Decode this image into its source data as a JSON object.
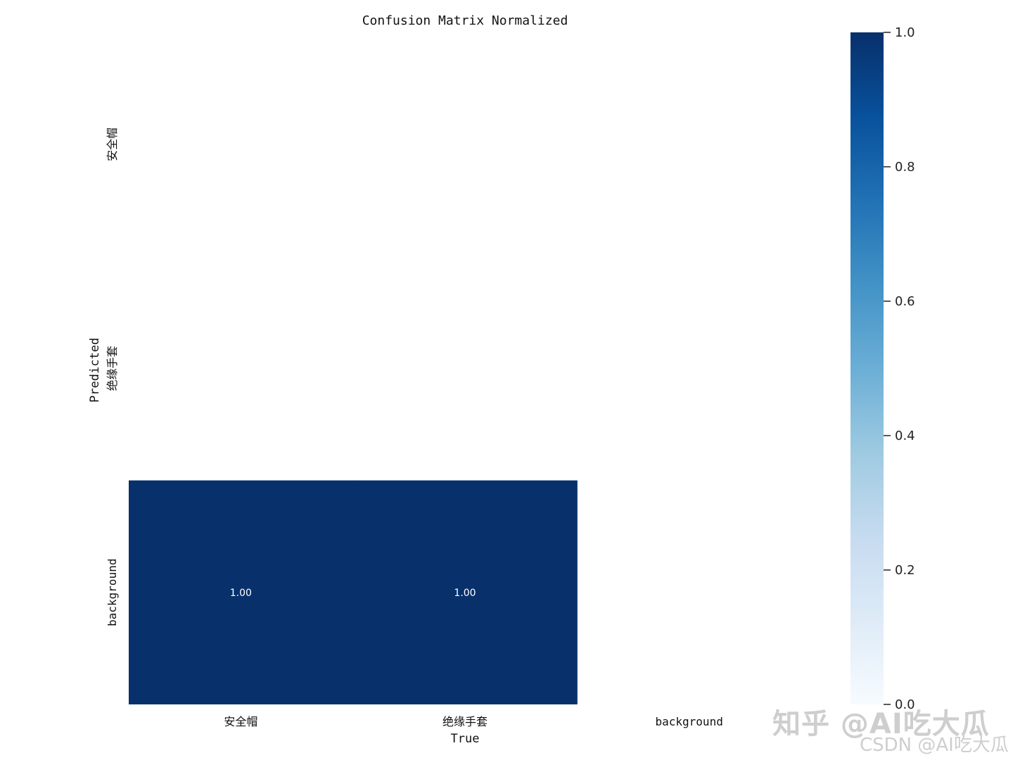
{
  "chart_data": {
    "type": "heatmap",
    "title": "Confusion Matrix Normalized",
    "xlabel": "True",
    "ylabel": "Predicted",
    "x_categories": [
      "安全帽",
      "绝缘手套",
      "background"
    ],
    "y_categories": [
      "安全帽",
      "绝缘手套",
      "background"
    ],
    "values": [
      [
        null,
        null,
        null
      ],
      [
        null,
        null,
        null
      ],
      [
        1.0,
        1.0,
        null
      ]
    ],
    "value_format": "0.00",
    "colormap": "Blues",
    "vmin": 0.0,
    "vmax": 1.0,
    "colorbar_ticks": [
      0.0,
      0.2,
      0.4,
      0.6,
      0.8,
      1.0
    ],
    "colorbar_tick_labels": [
      "0.0",
      "0.2",
      "0.4",
      "0.6",
      "0.8",
      "1.0"
    ],
    "cell_color": "#08306b"
  },
  "watermarks": {
    "zhihu": "知乎 @AI吃大瓜",
    "csdn": "CSDN @AI吃大瓜"
  }
}
